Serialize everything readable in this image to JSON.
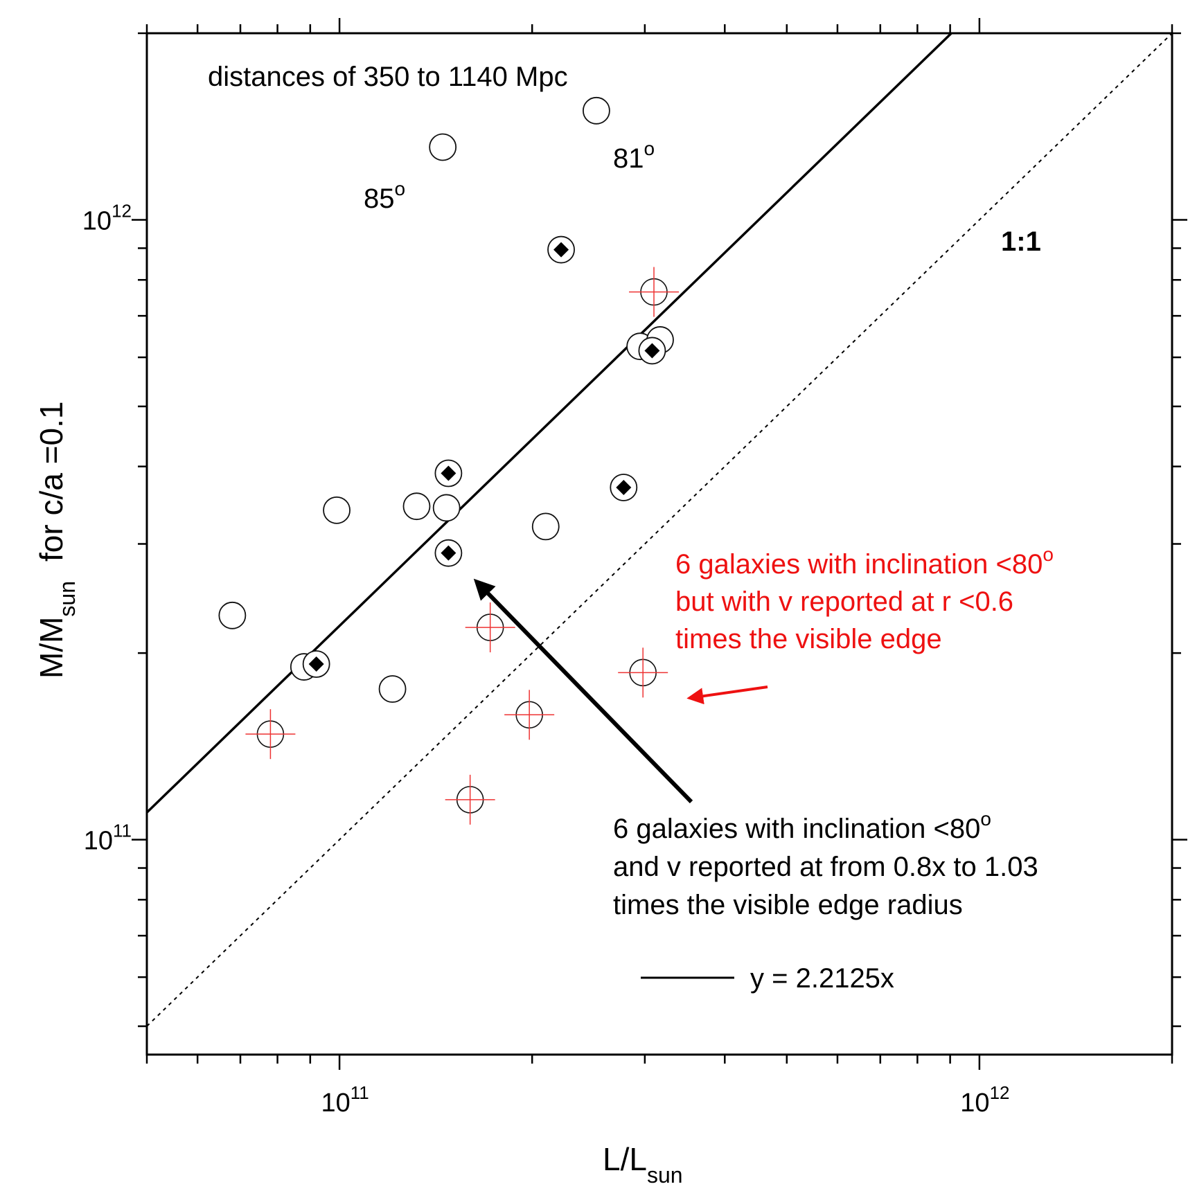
{
  "chart_data": {
    "type": "scatter",
    "xscale": "log",
    "yscale": "log",
    "xlim": [
      50000000000,
      2000000000000
    ],
    "ylim": [
      45000000000,
      2000000000000
    ],
    "xlabel": {
      "main": "L/L",
      "sub": "sun"
    },
    "ylabel": {
      "main": "M/M",
      "sub": "sun",
      "suffix": "for c/a =0.1"
    },
    "x_ticks": [
      {
        "value": 100000000000,
        "base": "10",
        "exp": "11"
      },
      {
        "value": 1000000000000,
        "base": "10",
        "exp": "12"
      }
    ],
    "y_ticks": [
      {
        "value": 100000000000,
        "base": "10",
        "exp": "11"
      },
      {
        "value": 1000000000000,
        "base": "10",
        "exp": "12"
      }
    ],
    "title": "distances of 350 to 1140 Mpc",
    "series": [
      {
        "name": "open circles",
        "marker": "open-circle",
        "points": [
          {
            "x": 68000000000,
            "y": 230000000000
          },
          {
            "x": 88000000000,
            "y": 190000000000
          },
          {
            "x": 99000000000,
            "y": 340000000000
          },
          {
            "x": 121000000000,
            "y": 175000000000
          },
          {
            "x": 132000000000,
            "y": 345000000000
          },
          {
            "x": 145000000000,
            "y": 1310000000000
          },
          {
            "x": 147000000000,
            "y": 343000000000
          },
          {
            "x": 210000000000,
            "y": 320000000000
          },
          {
            "x": 252000000000,
            "y": 1500000000000
          },
          {
            "x": 295000000000,
            "y": 625000000000
          },
          {
            "x": 317000000000,
            "y": 640000000000
          }
        ]
      },
      {
        "name": "filled diamonds in circles",
        "marker": "diamond-in-circle",
        "points": [
          {
            "x": 92000000000,
            "y": 192000000000
          },
          {
            "x": 148000000000,
            "y": 290000000000
          },
          {
            "x": 148000000000,
            "y": 390000000000
          },
          {
            "x": 222000000000,
            "y": 895000000000
          },
          {
            "x": 278000000000,
            "y": 370000000000
          },
          {
            "x": 308000000000,
            "y": 615000000000
          }
        ]
      },
      {
        "name": "6 galaxies with inclination <80o but with v reported at r <0.6 times the visible edge",
        "marker": "red-cross-circle",
        "color": "#ee3333",
        "points": [
          {
            "x": 78000000000,
            "y": 148000000000
          },
          {
            "x": 160000000000,
            "y": 116000000000
          },
          {
            "x": 172000000000,
            "y": 220000000000
          },
          {
            "x": 198000000000,
            "y": 159000000000
          },
          {
            "x": 298000000000,
            "y": 186000000000
          },
          {
            "x": 310000000000,
            "y": 765000000000
          }
        ]
      }
    ],
    "lines": [
      {
        "name": "fit",
        "label": "y = 2.2125x",
        "slope": 2.2125,
        "style": "solid"
      },
      {
        "name": "identity",
        "label": "1:1",
        "slope": 1,
        "style": "dotted"
      }
    ],
    "annotations": {
      "inclination_85": {
        "value": "85",
        "sup": "o"
      },
      "inclination_81": {
        "value": "81",
        "sup": "o"
      },
      "red_note": {
        "color": "#ee1111",
        "line1": "6 galaxies with inclination <80",
        "line1_sup": "o",
        "line2": "but with v reported at r <0.6",
        "line3": "times the visible edge"
      },
      "black_note": {
        "line1": "6 galaxies with inclination <80",
        "line1_sup": "o",
        "line2": "and v reported at from 0.8x to 1.03",
        "line3": "times the visible edge radius"
      }
    }
  }
}
